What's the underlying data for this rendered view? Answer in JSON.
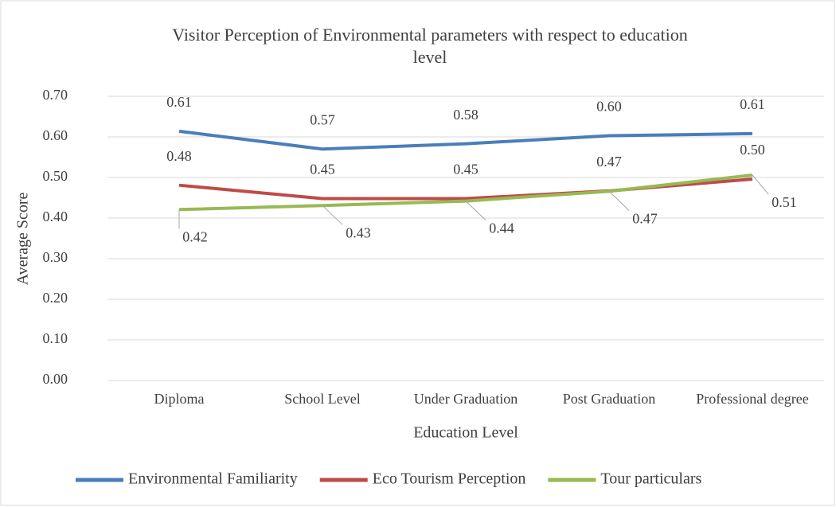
{
  "chart_data": {
    "type": "line",
    "title": "Visitor Perception of Environmental parameters with respect to education level",
    "x_label": "Education Level",
    "y_label": "Average Score",
    "categories": [
      "Diploma",
      "School Level",
      "Under Graduation",
      "Post Graduation",
      "Professional degree"
    ],
    "series": [
      {
        "name": "Environmental Familiarity",
        "color": "#4a7ebb",
        "values": [
          0.614,
          0.57,
          0.583,
          0.603,
          0.608
        ],
        "value_labels": [
          "0.61",
          "0.57",
          "0.58",
          "0.60",
          "0.61"
        ]
      },
      {
        "name": "Eco Tourism Perception",
        "color": "#be4b48",
        "values": [
          0.481,
          0.448,
          0.448,
          0.467,
          0.496
        ],
        "value_labels": [
          "0.48",
          "0.45",
          "0.45",
          "0.47",
          "0.50"
        ]
      },
      {
        "name": "Tour particulars",
        "color": "#98b954",
        "values": [
          0.421,
          0.431,
          0.442,
          0.466,
          0.506
        ],
        "value_labels": [
          "0.42",
          "0.43",
          "0.44",
          "0.47",
          "0.51"
        ]
      }
    ],
    "ylim": [
      0,
      0.7
    ],
    "yticks": [
      {
        "value": 0,
        "label": "0.00"
      },
      {
        "value": 0.1,
        "label": "0.10"
      },
      {
        "value": 0.2,
        "label": "0.20"
      },
      {
        "value": 0.3,
        "label": "0.30"
      },
      {
        "value": 0.4,
        "label": "0.40"
      },
      {
        "value": 0.5,
        "label": "0.50"
      },
      {
        "value": 0.6,
        "label": "0.60"
      },
      {
        "value": 0.7,
        "label": "0.70"
      }
    ],
    "grid": true,
    "legend": "bottom"
  }
}
